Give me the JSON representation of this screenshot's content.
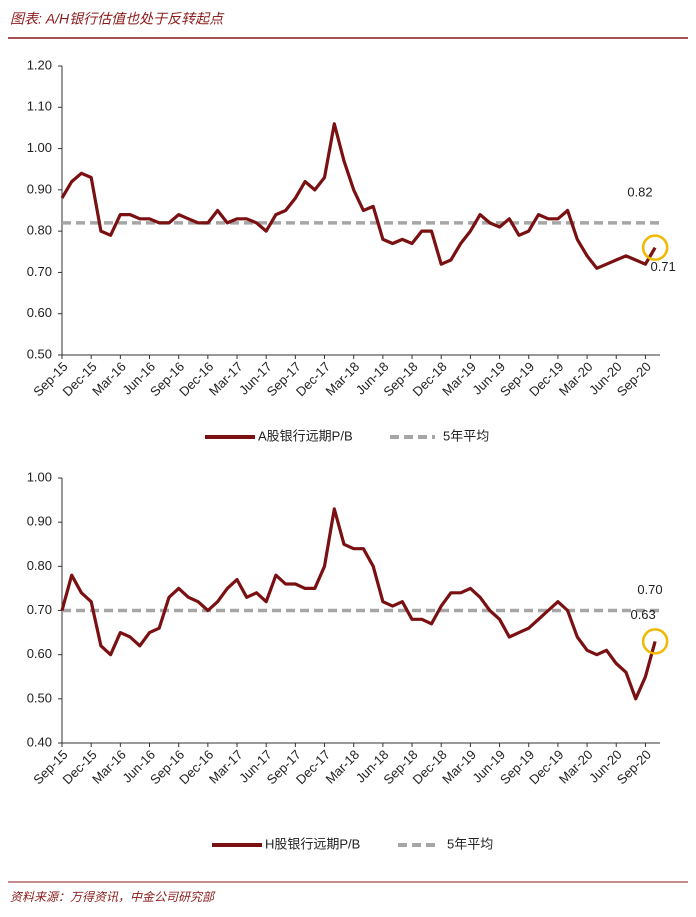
{
  "header": {
    "title": "图表: A/H银行估值也处于反转起点"
  },
  "chart_data": [
    {
      "type": "line",
      "categories": [
        "Sep-15",
        null,
        null,
        "Dec-15",
        null,
        null,
        "Mar-16",
        null,
        null,
        "Jun-16",
        null,
        null,
        "Sep-16",
        null,
        null,
        "Dec-16",
        null,
        null,
        "Mar-17",
        null,
        null,
        "Jun-17",
        null,
        null,
        "Sep-17",
        null,
        null,
        "Dec-17",
        null,
        null,
        "Mar-18",
        null,
        null,
        "Jun-18",
        null,
        null,
        "Sep-18",
        null,
        null,
        "Dec-18",
        null,
        null,
        "Mar-19",
        null,
        null,
        "Jun-19",
        null,
        null,
        "Sep-19",
        null,
        null,
        "Dec-19",
        null,
        null,
        "Mar-20",
        null,
        null,
        "Jun-20",
        null,
        null,
        "Sep-20",
        null
      ],
      "series": [
        {
          "name": "A股银行远期P/B",
          "color": "#7a1012",
          "values": [
            0.88,
            0.92,
            0.94,
            0.93,
            0.8,
            0.79,
            0.84,
            0.84,
            0.83,
            0.83,
            0.82,
            0.82,
            0.84,
            0.83,
            0.82,
            0.82,
            0.85,
            0.82,
            0.83,
            0.83,
            0.82,
            0.8,
            0.84,
            0.85,
            0.88,
            0.92,
            0.9,
            0.93,
            1.06,
            0.97,
            0.9,
            0.85,
            0.86,
            0.78,
            0.77,
            0.78,
            0.77,
            0.8,
            0.8,
            0.72,
            0.73,
            0.77,
            0.8,
            0.84,
            0.82,
            0.81,
            0.83,
            0.79,
            0.8,
            0.84,
            0.83,
            0.83,
            0.85,
            0.78,
            0.74,
            0.71,
            0.72,
            0.73,
            0.74,
            0.73,
            0.72,
            0.76
          ]
        }
      ],
      "average": {
        "name": "5年平均",
        "value": 0.82,
        "label": "0.82",
        "color": "#a6a6a6"
      },
      "annotation": "0.71",
      "ylim": [
        0.5,
        1.2
      ],
      "yticks": [
        {
          "value": 0.5,
          "label": "0.50"
        },
        {
          "value": 0.6,
          "label": "0.60"
        },
        {
          "value": 0.7,
          "label": "0.70"
        },
        {
          "value": 0.8,
          "label": "0.80"
        },
        {
          "value": 0.9,
          "label": "0.90"
        },
        {
          "value": 1.0,
          "label": "1.00"
        },
        {
          "value": 1.1,
          "label": "1.10"
        },
        {
          "value": 1.2,
          "label": "1.20"
        }
      ]
    },
    {
      "type": "line",
      "categories": [
        "Sep-15",
        null,
        null,
        "Dec-15",
        null,
        null,
        "Mar-16",
        null,
        null,
        "Jun-16",
        null,
        null,
        "Sep-16",
        null,
        null,
        "Dec-16",
        null,
        null,
        "Mar-17",
        null,
        null,
        "Jun-17",
        null,
        null,
        "Sep-17",
        null,
        null,
        "Dec-17",
        null,
        null,
        "Mar-18",
        null,
        null,
        "Jun-18",
        null,
        null,
        "Sep-18",
        null,
        null,
        "Dec-18",
        null,
        null,
        "Mar-19",
        null,
        null,
        "Jun-19",
        null,
        null,
        "Sep-19",
        null,
        null,
        "Dec-19",
        null,
        null,
        "Mar-20",
        null,
        null,
        "Jun-20",
        null,
        null,
        "Sep-20",
        null
      ],
      "series": [
        {
          "name": "H股银行远期P/B",
          "color": "#7a1012",
          "values": [
            0.7,
            0.78,
            0.74,
            0.72,
            0.62,
            0.6,
            0.65,
            0.64,
            0.62,
            0.65,
            0.66,
            0.73,
            0.75,
            0.73,
            0.72,
            0.7,
            0.72,
            0.75,
            0.77,
            0.73,
            0.74,
            0.72,
            0.78,
            0.76,
            0.76,
            0.75,
            0.75,
            0.8,
            0.93,
            0.85,
            0.84,
            0.84,
            0.8,
            0.72,
            0.71,
            0.72,
            0.68,
            0.68,
            0.67,
            0.71,
            0.74,
            0.74,
            0.75,
            0.73,
            0.7,
            0.68,
            0.64,
            0.65,
            0.66,
            0.68,
            0.7,
            0.72,
            0.7,
            0.64,
            0.61,
            0.6,
            0.61,
            0.58,
            0.56,
            0.5,
            0.55,
            0.63
          ]
        }
      ],
      "average": {
        "name": "5年平均",
        "value": 0.7,
        "label": "0.70",
        "color": "#a6a6a6"
      },
      "annotation": "0.63",
      "ylim": [
        0.4,
        1.0
      ],
      "yticks": [
        {
          "value": 0.4,
          "label": "0.40"
        },
        {
          "value": 0.5,
          "label": "0.50"
        },
        {
          "value": 0.6,
          "label": "0.60"
        },
        {
          "value": 0.7,
          "label": "0.70"
        },
        {
          "value": 0.8,
          "label": "0.80"
        },
        {
          "value": 0.9,
          "label": "0.90"
        },
        {
          "value": 1.0,
          "label": "1.00"
        }
      ]
    }
  ],
  "footer": {
    "source": "资料来源：万得资讯，中金公司研究部"
  }
}
